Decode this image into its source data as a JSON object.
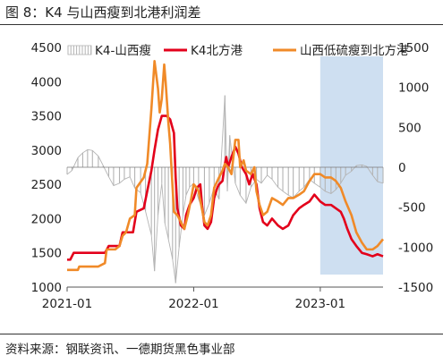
{
  "figure": {
    "title": "图 8：K4 与山西瘦到北港利润差",
    "source": "资料来源：钢联资讯、一德期货黑色事业部"
  },
  "chart_data": {
    "type": "line",
    "title": "",
    "xlabel": "",
    "ylabel": "",
    "x_ticks": [
      "2021-01",
      "2022-01",
      "2023-01"
    ],
    "x_range": [
      "2021-01-01",
      "2023-07-01"
    ],
    "y_left": {
      "range": [
        1000,
        4500
      ],
      "ticks": [
        1000,
        1500,
        2000,
        2500,
        3000,
        3500,
        4000,
        4500
      ]
    },
    "y_right": {
      "range": [
        -1500,
        1500
      ],
      "ticks": [
        -1500,
        -1000,
        -500,
        0,
        500,
        1000,
        1500
      ]
    },
    "grid": false,
    "legend_position": "top",
    "highlight_region": {
      "x_start": "2023-01-01",
      "x_end": "2023-07-01",
      "color": "#c5d9ee"
    },
    "series": [
      {
        "name": "K4-山西瘦",
        "axis": "right",
        "render": "bar",
        "color": "#b4b4b4",
        "points": [
          [
            "2021-01-01",
            -90
          ],
          [
            "2021-01-15",
            -40
          ],
          [
            "2021-02-01",
            120
          ],
          [
            "2021-02-15",
            180
          ],
          [
            "2021-03-01",
            220
          ],
          [
            "2021-03-15",
            210
          ],
          [
            "2021-04-01",
            140
          ],
          [
            "2021-04-15",
            20
          ],
          [
            "2021-05-01",
            -120
          ],
          [
            "2021-05-15",
            -230
          ],
          [
            "2021-06-01",
            -200
          ],
          [
            "2021-06-15",
            -150
          ],
          [
            "2021-07-01",
            -120
          ],
          [
            "2021-07-15",
            -260
          ],
          [
            "2021-08-01",
            -320
          ],
          [
            "2021-08-15",
            -550
          ],
          [
            "2021-09-01",
            -850
          ],
          [
            "2021-09-10",
            -1300
          ],
          [
            "2021-09-20",
            -600
          ],
          [
            "2021-10-01",
            -200
          ],
          [
            "2021-10-10",
            -700
          ],
          [
            "2021-10-20",
            -900
          ],
          [
            "2021-11-01",
            -1150
          ],
          [
            "2021-11-10",
            -1450
          ],
          [
            "2021-11-20",
            -1000
          ],
          [
            "2021-12-01",
            -600
          ],
          [
            "2021-12-10",
            -350
          ],
          [
            "2021-12-20",
            -250
          ],
          [
            "2022-01-01",
            -200
          ],
          [
            "2022-01-15",
            -400
          ],
          [
            "2022-02-01",
            -600
          ],
          [
            "2022-02-15",
            -450
          ],
          [
            "2022-03-01",
            -250
          ],
          [
            "2022-03-15",
            -400
          ],
          [
            "2022-04-01",
            900
          ],
          [
            "2022-04-08",
            -300
          ],
          [
            "2022-04-15",
            400
          ],
          [
            "2022-05-01",
            -200
          ],
          [
            "2022-05-15",
            -350
          ],
          [
            "2022-06-01",
            -450
          ],
          [
            "2022-06-15",
            -250
          ],
          [
            "2022-07-01",
            -150
          ],
          [
            "2022-07-15",
            -200
          ],
          [
            "2022-08-01",
            -100
          ],
          [
            "2022-08-15",
            -150
          ],
          [
            "2022-09-01",
            -250
          ],
          [
            "2022-09-15",
            -300
          ],
          [
            "2022-10-01",
            -350
          ],
          [
            "2022-10-15",
            -380
          ],
          [
            "2022-11-01",
            -300
          ],
          [
            "2022-11-15",
            -250
          ],
          [
            "2022-12-01",
            -150
          ],
          [
            "2022-12-15",
            -200
          ],
          [
            "2023-01-01",
            -250
          ],
          [
            "2023-01-15",
            -300
          ],
          [
            "2023-02-01",
            -330
          ],
          [
            "2023-02-15",
            -280
          ],
          [
            "2023-03-01",
            -200
          ],
          [
            "2023-03-15",
            -100
          ],
          [
            "2023-04-01",
            -50
          ],
          [
            "2023-04-15",
            20
          ],
          [
            "2023-05-01",
            30
          ],
          [
            "2023-05-15",
            10
          ],
          [
            "2023-06-01",
            -100
          ],
          [
            "2023-06-15",
            -180
          ],
          [
            "2023-07-01",
            -200
          ]
        ]
      },
      {
        "name": "K4北方港",
        "axis": "left",
        "render": "line",
        "color": "#e3001b",
        "points": [
          [
            "2021-01-01",
            1400
          ],
          [
            "2021-01-10",
            1400
          ],
          [
            "2021-01-20",
            1500
          ],
          [
            "2021-03-01",
            1500
          ],
          [
            "2021-04-20",
            1500
          ],
          [
            "2021-05-01",
            1600
          ],
          [
            "2021-06-01",
            1600
          ],
          [
            "2021-06-10",
            1800
          ],
          [
            "2021-07-10",
            1800
          ],
          [
            "2021-07-20",
            2100
          ],
          [
            "2021-08-10",
            2150
          ],
          [
            "2021-08-20",
            2400
          ],
          [
            "2021-09-01",
            2700
          ],
          [
            "2021-09-10",
            3000
          ],
          [
            "2021-09-20",
            3300
          ],
          [
            "2021-10-01",
            3500
          ],
          [
            "2021-10-15",
            3500
          ],
          [
            "2021-10-25",
            3450
          ],
          [
            "2021-11-05",
            3250
          ],
          [
            "2021-11-10",
            2600
          ],
          [
            "2021-11-15",
            2150
          ],
          [
            "2021-11-25",
            1900
          ],
          [
            "2021-12-05",
            1850
          ],
          [
            "2021-12-10",
            2050
          ],
          [
            "2021-12-20",
            2200
          ],
          [
            "2022-01-01",
            2300
          ],
          [
            "2022-01-10",
            2450
          ],
          [
            "2022-01-20",
            2500
          ],
          [
            "2022-01-25",
            2200
          ],
          [
            "2022-02-01",
            1900
          ],
          [
            "2022-02-10",
            1850
          ],
          [
            "2022-02-20",
            1950
          ],
          [
            "2022-03-01",
            2300
          ],
          [
            "2022-03-10",
            2450
          ],
          [
            "2022-03-15",
            2500
          ],
          [
            "2022-03-25",
            2550
          ],
          [
            "2022-04-01",
            2800
          ],
          [
            "2022-04-05",
            2900
          ],
          [
            "2022-04-10",
            2750
          ],
          [
            "2022-04-20",
            2900
          ],
          [
            "2022-05-01",
            3050
          ],
          [
            "2022-05-10",
            2950
          ],
          [
            "2022-05-20",
            2750
          ],
          [
            "2022-06-01",
            2650
          ],
          [
            "2022-06-10",
            2500
          ],
          [
            "2022-06-20",
            2650
          ],
          [
            "2022-07-01",
            2500
          ],
          [
            "2022-07-10",
            2150
          ],
          [
            "2022-07-20",
            1950
          ],
          [
            "2022-08-01",
            1900
          ],
          [
            "2022-08-15",
            2000
          ],
          [
            "2022-09-01",
            1900
          ],
          [
            "2022-09-15",
            1850
          ],
          [
            "2022-10-01",
            1900
          ],
          [
            "2022-10-15",
            2050
          ],
          [
            "2022-11-01",
            2150
          ],
          [
            "2022-11-15",
            2200
          ],
          [
            "2022-12-01",
            2250
          ],
          [
            "2022-12-15",
            2350
          ],
          [
            "2023-01-01",
            2250
          ],
          [
            "2023-01-15",
            2200
          ],
          [
            "2023-02-01",
            2200
          ],
          [
            "2023-02-15",
            2150
          ],
          [
            "2023-03-01",
            2100
          ],
          [
            "2023-03-10",
            2000
          ],
          [
            "2023-03-20",
            1850
          ],
          [
            "2023-04-01",
            1700
          ],
          [
            "2023-04-15",
            1600
          ],
          [
            "2023-05-01",
            1500
          ],
          [
            "2023-05-15",
            1480
          ],
          [
            "2023-06-01",
            1450
          ],
          [
            "2023-06-15",
            1480
          ],
          [
            "2023-07-01",
            1450
          ]
        ]
      },
      {
        "name": "山西低硫瘦到北方港",
        "axis": "left",
        "render": "line",
        "color": "#f08a28",
        "points": [
          [
            "2021-01-01",
            1250
          ],
          [
            "2021-02-01",
            1250
          ],
          [
            "2021-02-05",
            1300
          ],
          [
            "2021-04-01",
            1300
          ],
          [
            "2021-04-20",
            1350
          ],
          [
            "2021-04-25",
            1550
          ],
          [
            "2021-05-20",
            1550
          ],
          [
            "2021-06-01",
            1600
          ],
          [
            "2021-06-10",
            1750
          ],
          [
            "2021-06-20",
            1800
          ],
          [
            "2021-07-01",
            2000
          ],
          [
            "2021-07-15",
            2050
          ],
          [
            "2021-07-20",
            2450
          ],
          [
            "2021-08-10",
            2600
          ],
          [
            "2021-08-20",
            2800
          ],
          [
            "2021-09-01",
            3600
          ],
          [
            "2021-09-10",
            4300
          ],
          [
            "2021-09-20",
            3900
          ],
          [
            "2021-09-25",
            3550
          ],
          [
            "2021-10-01",
            3750
          ],
          [
            "2021-10-08",
            4250
          ],
          [
            "2021-10-12",
            4000
          ],
          [
            "2021-10-20",
            3400
          ],
          [
            "2021-10-25",
            3100
          ],
          [
            "2021-11-05",
            2100
          ],
          [
            "2021-11-15",
            2050
          ],
          [
            "2021-11-25",
            1950
          ],
          [
            "2021-12-05",
            1850
          ],
          [
            "2021-12-15",
            2050
          ],
          [
            "2021-12-25",
            2300
          ],
          [
            "2022-01-01",
            2500
          ],
          [
            "2022-01-10",
            2450
          ],
          [
            "2022-01-15",
            2400
          ],
          [
            "2022-02-01",
            1950
          ],
          [
            "2022-02-10",
            1900
          ],
          [
            "2022-02-20",
            2050
          ],
          [
            "2022-03-01",
            2450
          ],
          [
            "2022-03-15",
            2600
          ],
          [
            "2022-03-25",
            2700
          ],
          [
            "2022-04-01",
            2800
          ],
          [
            "2022-04-10",
            2750
          ],
          [
            "2022-04-20",
            2650
          ],
          [
            "2022-05-01",
            3150
          ],
          [
            "2022-05-10",
            3150
          ],
          [
            "2022-05-15",
            2750
          ],
          [
            "2022-05-25",
            2850
          ],
          [
            "2022-06-01",
            2700
          ],
          [
            "2022-06-15",
            2650
          ],
          [
            "2022-06-25",
            2750
          ],
          [
            "2022-07-01",
            2400
          ],
          [
            "2022-07-10",
            2200
          ],
          [
            "2022-07-20",
            2050
          ],
          [
            "2022-08-01",
            2100
          ],
          [
            "2022-08-15",
            2300
          ],
          [
            "2022-09-01",
            2250
          ],
          [
            "2022-09-15",
            2200
          ],
          [
            "2022-10-01",
            2300
          ],
          [
            "2022-10-15",
            2300
          ],
          [
            "2022-11-01",
            2350
          ],
          [
            "2022-11-15",
            2400
          ],
          [
            "2022-12-01",
            2550
          ],
          [
            "2022-12-15",
            2650
          ],
          [
            "2023-01-01",
            2650
          ],
          [
            "2023-01-15",
            2600
          ],
          [
            "2023-02-01",
            2600
          ],
          [
            "2023-02-15",
            2550
          ],
          [
            "2023-03-01",
            2450
          ],
          [
            "2023-03-15",
            2250
          ],
          [
            "2023-04-01",
            2050
          ],
          [
            "2023-04-15",
            1800
          ],
          [
            "2023-05-01",
            1650
          ],
          [
            "2023-05-15",
            1550
          ],
          [
            "2023-06-01",
            1550
          ],
          [
            "2023-06-15",
            1600
          ],
          [
            "2023-07-01",
            1700
          ]
        ]
      }
    ]
  }
}
